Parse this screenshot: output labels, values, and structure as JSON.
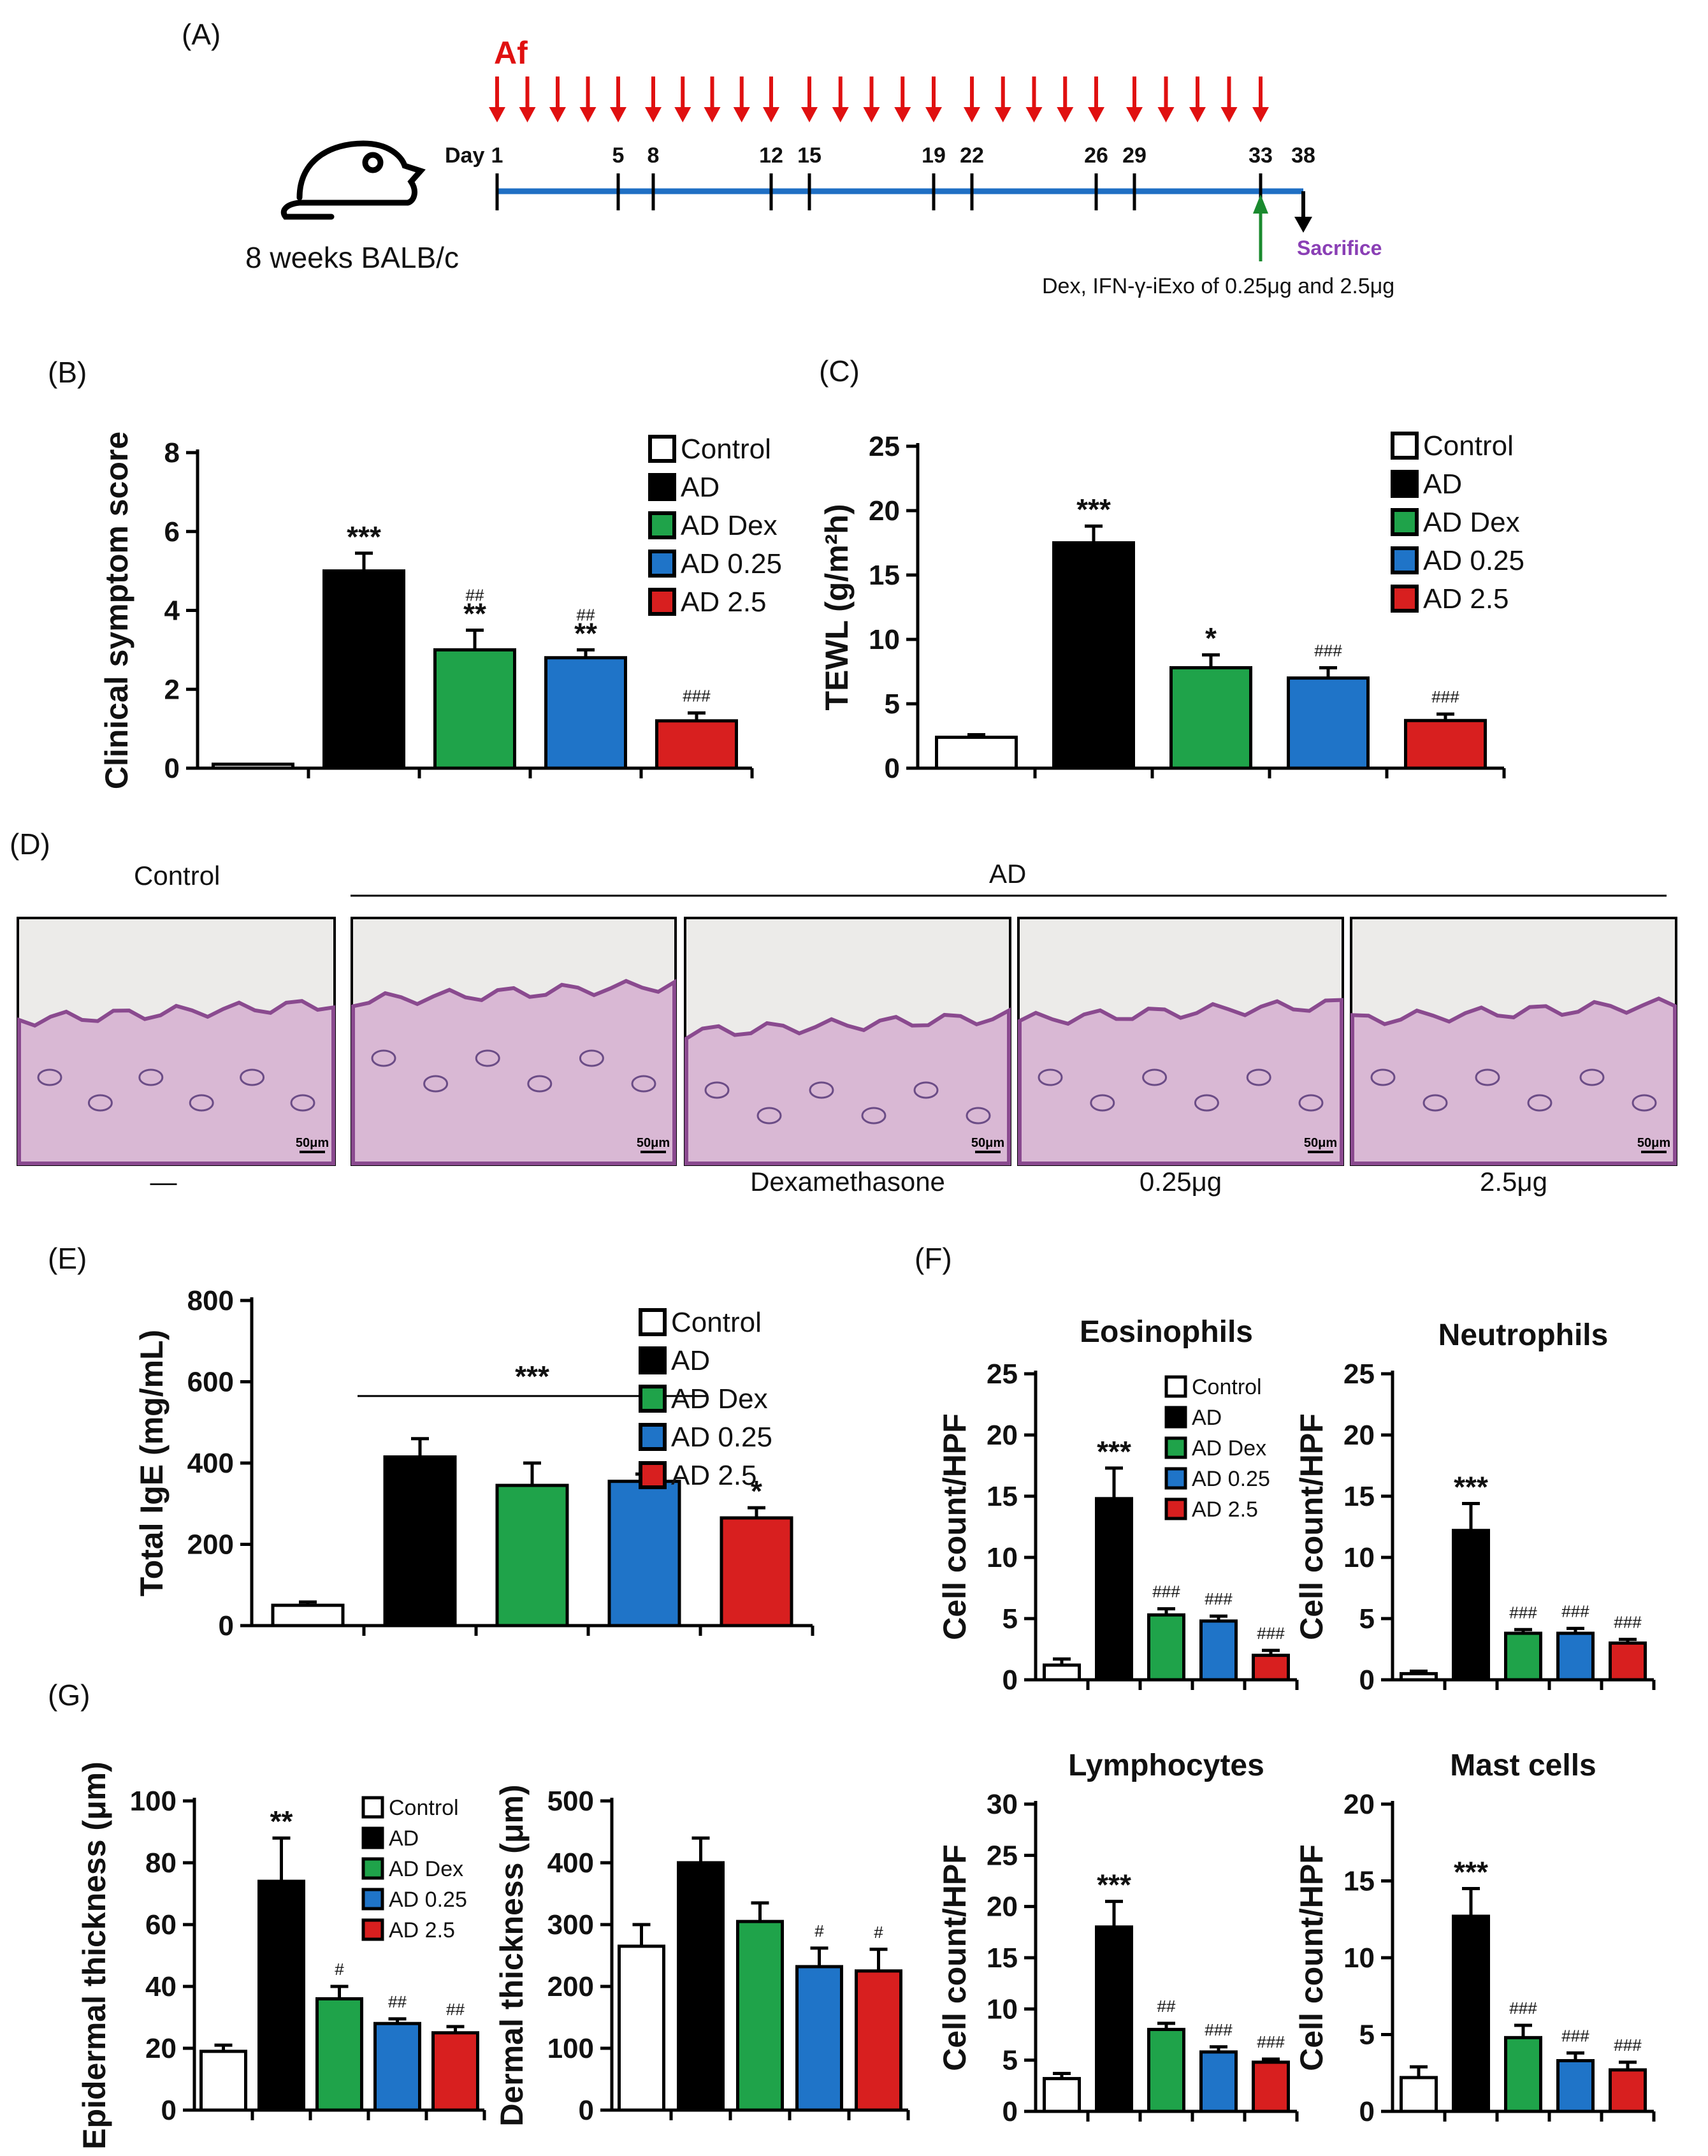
{
  "colors": {
    "Control": "#ffffff",
    "AD": "#000000",
    "AD Dex": "#1fa34a",
    "AD 0.25": "#1f74c8",
    "AD 2.5": "#d81f1f",
    "timeline": "#1f6fc4",
    "arrow_af": "#e01010",
    "arrow_treat": "#1a8a2e",
    "sacrifice": "#8a3fb5"
  },
  "panelA": {
    "label": "(A)",
    "af": "Af",
    "day_label": "Day",
    "days": [
      "1",
      "5",
      "8",
      "12",
      "15",
      "19",
      "22",
      "26",
      "29",
      "33",
      "38"
    ],
    "mouse": "8 weeks BALB/c",
    "sacrifice": "Sacrifice",
    "treatment": "Dex, IFN-γ-iExo of 0.25μg and 2.5μg"
  },
  "panelD": {
    "label": "(D)",
    "control_header": "Control",
    "ad_header": "AD",
    "scale_bar": "50μm",
    "captions": [
      "—",
      "",
      "Dexamethasone",
      "0.25μg",
      "2.5μg"
    ]
  },
  "chart_data": [
    {
      "id": "B",
      "type": "bar",
      "panel_label": "(B)",
      "ylabel": "Clinical symptom score",
      "ylim": [
        0,
        8
      ],
      "yticks": [
        0,
        2,
        4,
        6,
        8
      ],
      "categories": [
        "Control",
        "AD",
        "AD Dex",
        "AD 0.25",
        "AD 2.5"
      ],
      "values": [
        0.1,
        5.0,
        3.0,
        2.8,
        1.2
      ],
      "errors": [
        0,
        0.45,
        0.5,
        0.2,
        0.2
      ],
      "stars": [
        "",
        "***",
        "**",
        "**",
        ""
      ],
      "hashes": [
        "",
        "",
        "##",
        "##",
        "###"
      ],
      "legend": [
        "Control",
        "AD",
        "AD Dex",
        "AD 0.25",
        "AD 2.5"
      ]
    },
    {
      "id": "C",
      "type": "bar",
      "panel_label": "(C)",
      "ylabel": "TEWL (g/m²h)",
      "ylim": [
        0,
        25
      ],
      "yticks": [
        0,
        5,
        10,
        15,
        20,
        25
      ],
      "categories": [
        "Control",
        "AD",
        "AD Dex",
        "AD 0.25",
        "AD 2.5"
      ],
      "values": [
        2.4,
        17.5,
        7.8,
        7.0,
        3.7
      ],
      "errors": [
        0.2,
        1.3,
        1.0,
        0.8,
        0.5
      ],
      "stars": [
        "",
        "***",
        "*",
        "",
        ""
      ],
      "hashes": [
        "",
        "",
        "",
        "###",
        "###"
      ],
      "legend": [
        "Control",
        "AD",
        "AD Dex",
        "AD 0.25",
        "AD 2.5"
      ]
    },
    {
      "id": "E",
      "type": "bar",
      "panel_label": "(E)",
      "ylabel": "Total IgE (mg/mL)",
      "ylim": [
        0,
        800
      ],
      "yticks": [
        0,
        200,
        400,
        600,
        800
      ],
      "categories": [
        "Control",
        "AD",
        "AD Dex",
        "AD 0.25",
        "AD 2.5"
      ],
      "values": [
        50,
        415,
        345,
        355,
        265
      ],
      "errors": [
        8,
        45,
        55,
        18,
        25
      ],
      "stars": [
        "",
        "",
        "",
        "",
        "*"
      ],
      "hashes": [
        "",
        "",
        "",
        "",
        ""
      ],
      "bracket_label": "***",
      "legend": [
        "Control",
        "AD",
        "AD Dex",
        "AD 0.25",
        "AD 2.5"
      ]
    },
    {
      "id": "F1",
      "type": "bar",
      "panel_label": "(F)",
      "title": "Eosinophils",
      "ylabel": "Cell count/HPF",
      "ylim": [
        0,
        25
      ],
      "yticks": [
        0,
        5,
        10,
        15,
        20,
        25
      ],
      "categories": [
        "Control",
        "AD",
        "AD Dex",
        "AD 0.25",
        "AD 2.5"
      ],
      "values": [
        1.2,
        14.8,
        5.3,
        4.8,
        2.0
      ],
      "errors": [
        0.5,
        2.5,
        0.5,
        0.4,
        0.4
      ],
      "stars": [
        "",
        "***",
        "",
        "",
        ""
      ],
      "hashes": [
        "",
        "",
        "###",
        "###",
        "###"
      ],
      "legend": [
        "Control",
        "AD",
        "AD Dex",
        "AD 0.25",
        "AD 2.5"
      ]
    },
    {
      "id": "F2",
      "type": "bar",
      "title": "Neutrophils",
      "ylabel": "Cell count/HPF",
      "ylim": [
        0,
        25
      ],
      "yticks": [
        0,
        5,
        10,
        15,
        20,
        25
      ],
      "categories": [
        "Control",
        "AD",
        "AD Dex",
        "AD 0.25",
        "AD 2.5"
      ],
      "values": [
        0.5,
        12.2,
        3.8,
        3.8,
        3.0
      ],
      "errors": [
        0.2,
        2.2,
        0.3,
        0.4,
        0.3
      ],
      "stars": [
        "",
        "***",
        "",
        "",
        ""
      ],
      "hashes": [
        "",
        "",
        "###",
        "###",
        "###"
      ]
    },
    {
      "id": "F3",
      "type": "bar",
      "title": "Lymphocytes",
      "ylabel": "Cell count/HPF",
      "ylim": [
        0,
        30
      ],
      "yticks": [
        0,
        5,
        10,
        15,
        20,
        25,
        30
      ],
      "categories": [
        "Control",
        "AD",
        "AD Dex",
        "AD 0.25",
        "AD 2.5"
      ],
      "values": [
        3.2,
        18.0,
        8.0,
        5.8,
        4.8
      ],
      "errors": [
        0.5,
        2.5,
        0.6,
        0.5,
        0.3
      ],
      "stars": [
        "",
        "***",
        "",
        "",
        ""
      ],
      "hashes": [
        "",
        "",
        "##",
        "###",
        "###"
      ]
    },
    {
      "id": "F4",
      "type": "bar",
      "title": "Mast cells",
      "ylabel": "Cell count/HPF",
      "ylim": [
        0,
        20
      ],
      "yticks": [
        0,
        5,
        10,
        15,
        20
      ],
      "categories": [
        "Control",
        "AD",
        "AD Dex",
        "AD 0.25",
        "AD 2.5"
      ],
      "values": [
        2.2,
        12.7,
        4.8,
        3.3,
        2.7
      ],
      "errors": [
        0.7,
        1.8,
        0.8,
        0.5,
        0.5
      ],
      "stars": [
        "",
        "***",
        "",
        "",
        ""
      ],
      "hashes": [
        "",
        "",
        "###",
        "###",
        "###"
      ]
    },
    {
      "id": "G1",
      "type": "bar",
      "panel_label": "(G)",
      "ylabel": "Epidermal thickness (μm)",
      "ylim": [
        0,
        100
      ],
      "yticks": [
        0,
        20,
        40,
        60,
        80,
        100
      ],
      "categories": [
        "Control",
        "AD",
        "AD Dex",
        "AD 0.25",
        "AD 2.5"
      ],
      "values": [
        19,
        74,
        36,
        28,
        25
      ],
      "errors": [
        2,
        14,
        4,
        1.5,
        2
      ],
      "stars": [
        "",
        "**",
        "",
        "",
        ""
      ],
      "hashes": [
        "",
        "",
        "#",
        "##",
        "##"
      ],
      "legend": [
        "Control",
        "AD",
        "AD Dex",
        "AD 0.25",
        "AD 2.5"
      ]
    },
    {
      "id": "G2",
      "type": "bar",
      "ylabel": "Dermal thickness (μm)",
      "ylim": [
        0,
        500
      ],
      "yticks": [
        0,
        100,
        200,
        300,
        400,
        500
      ],
      "categories": [
        "Control",
        "AD",
        "AD Dex",
        "AD 0.25",
        "AD 2.5"
      ],
      "values": [
        265,
        400,
        305,
        232,
        225
      ],
      "errors": [
        35,
        40,
        30,
        30,
        35
      ],
      "stars": [
        "",
        "",
        "",
        "",
        ""
      ],
      "hashes": [
        "",
        "",
        "",
        "#",
        "#"
      ]
    }
  ]
}
